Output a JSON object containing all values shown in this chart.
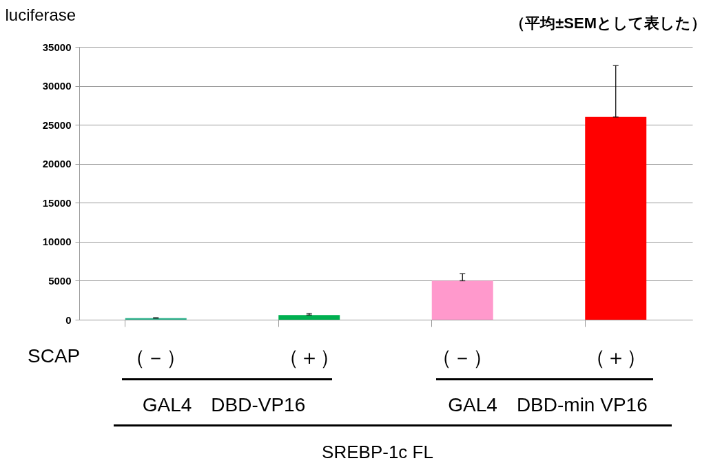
{
  "chart_data": {
    "type": "bar",
    "ylabel": "luciferase",
    "categories": [
      "（－）",
      "（＋）",
      "（－）",
      "（＋）"
    ],
    "values": [
      200,
      600,
      5000,
      26000
    ],
    "colors": [
      "#2db38c",
      "#00b050",
      "#ff99cc",
      "#ff0000"
    ],
    "errors": [
      [
        200,
        250
      ],
      [
        600,
        800
      ],
      [
        5000,
        5900
      ],
      [
        26000,
        32600
      ]
    ],
    "ylim": [
      0,
      35000
    ],
    "yticks": [
      0,
      5000,
      10000,
      15000,
      20000,
      25000,
      30000,
      35000
    ],
    "grid": "y",
    "annotations": [
      "（平均±SEMとして表した）",
      "SCAP",
      "GAL4　DBD-VP16",
      "GAL4　DBD-min VP16",
      "SREBP-1c FL"
    ]
  }
}
